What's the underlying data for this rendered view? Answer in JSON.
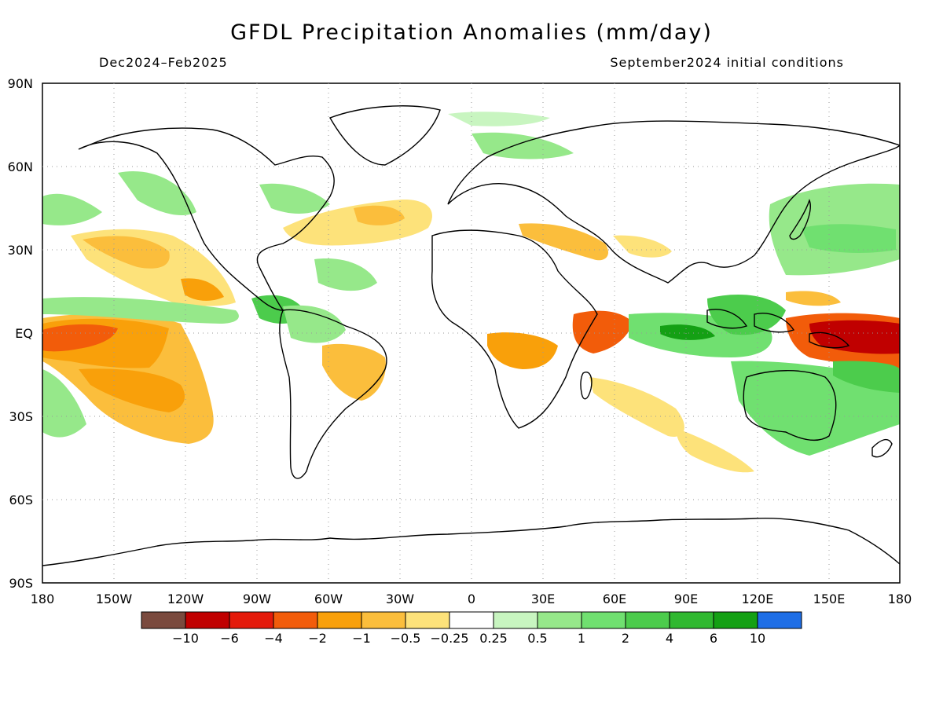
{
  "title": "GFDL Precipitation Anomalies (mm/day)",
  "subtitle_left": "Dec2024–Feb2025",
  "subtitle_right": "September2024 initial conditions",
  "axes": {
    "lat_labels": [
      "90N",
      "60N",
      "30N",
      "EQ",
      "30S",
      "60S",
      "90S"
    ],
    "lon_labels": [
      "180",
      "150W",
      "120W",
      "90W",
      "60W",
      "30W",
      "0",
      "30E",
      "60E",
      "90E",
      "120E",
      "150E",
      "180"
    ]
  },
  "legend": {
    "colors": [
      "#7a4a3e",
      "#c00000",
      "#e41a0a",
      "#f25c0a",
      "#f9a00a",
      "#fbbe3c",
      "#fde27a",
      "#ffffff",
      "#c8f5c0",
      "#96e88a",
      "#70e070",
      "#4ccc4c",
      "#30b830",
      "#14a014",
      "#1e6ee6"
    ],
    "labels": [
      "−10",
      "−6",
      "−4",
      "−2",
      "−1",
      "−0.5",
      "−0.25",
      "0.25",
      "0.5",
      "1",
      "2",
      "4",
      "6",
      "10"
    ]
  }
}
